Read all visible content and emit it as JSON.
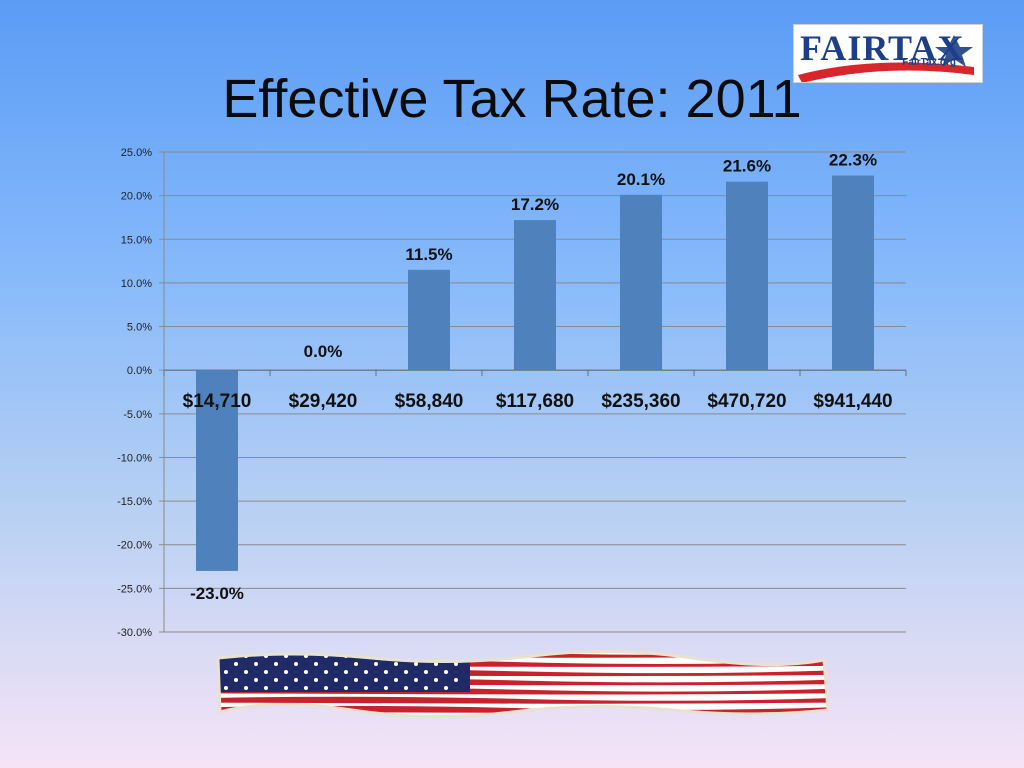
{
  "slide": {
    "title": "Effective Tax Rate:  2011"
  },
  "logo": {
    "text": "FAIRTAX",
    "url_text": "FairTax.org"
  },
  "chart_data": {
    "type": "bar",
    "categories": [
      "$14,710",
      "$29,420",
      "$58,840",
      "$117,680",
      "$235,360",
      "$470,720",
      "$941,440"
    ],
    "values": [
      -23.0,
      0.0,
      11.5,
      17.2,
      20.1,
      21.6,
      22.3
    ],
    "data_labels": [
      "-23.0%",
      "0.0%",
      "11.5%",
      "17.2%",
      "20.1%",
      "21.6%",
      "22.3%"
    ],
    "ylim": [
      -30,
      25
    ],
    "yticks": [
      25,
      20,
      15,
      10,
      5,
      0,
      -5,
      -10,
      -15,
      -20,
      -25,
      -30
    ],
    "ytick_labels": [
      "25.0%",
      "20.0%",
      "15.0%",
      "10.0%",
      "5.0%",
      "0.0%",
      "-5.0%",
      "-10.0%",
      "-15.0%",
      "-20.0%",
      "-25.0%",
      "-30.0%"
    ],
    "grid": true,
    "legend": "none",
    "bar_color": "#4f81bd",
    "title": "",
    "xlabel": "",
    "ylabel": ""
  }
}
